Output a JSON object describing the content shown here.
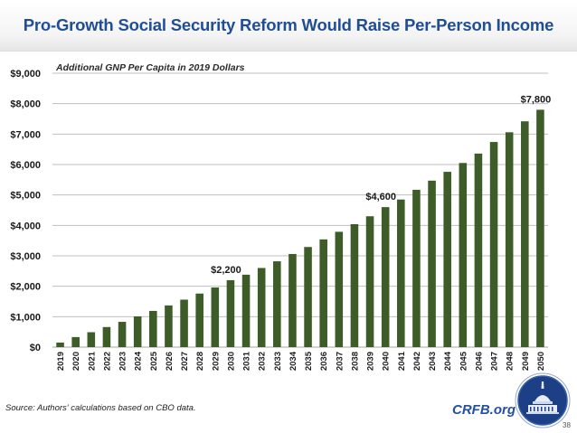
{
  "header": {
    "title": "Pro-Growth Social Security Reform Would Raise Per-Person Income"
  },
  "footer": {
    "source": "Source: Authors' calculations based on CBO data.",
    "brand": "CRFB.org",
    "page_number": "38",
    "logo_icon": "capitol-dome-logo-icon"
  },
  "colors": {
    "title": "#1f4e96",
    "bar": "#3d5c27",
    "brand": "#2450a0",
    "grid": "#bfbfbf"
  },
  "chart_data": {
    "type": "bar",
    "title": "Pro-Growth Social Security Reform Would Raise Per-Person Income",
    "subtitle": "Additional GNP Per Capita in 2019 Dollars",
    "xlabel": "",
    "ylabel": "",
    "ylim": [
      0,
      9000
    ],
    "yticks": [
      0,
      1000,
      2000,
      3000,
      4000,
      5000,
      6000,
      7000,
      8000,
      9000
    ],
    "ytick_labels": [
      "$0",
      "$1,000",
      "$2,000",
      "$3,000",
      "$4,000",
      "$5,000",
      "$6,000",
      "$7,000",
      "$8,000",
      "$9,000"
    ],
    "grid": true,
    "legend": "none",
    "categories": [
      "2019",
      "2020",
      "2021",
      "2022",
      "2023",
      "2024",
      "2025",
      "2026",
      "2027",
      "2028",
      "2029",
      "2030",
      "2031",
      "2032",
      "2033",
      "2034",
      "2035",
      "2036",
      "2037",
      "2038",
      "2039",
      "2040",
      "2041",
      "2042",
      "2043",
      "2044",
      "2045",
      "2046",
      "2047",
      "2048",
      "2049",
      "2050"
    ],
    "values": [
      150,
      330,
      490,
      660,
      830,
      1010,
      1190,
      1370,
      1560,
      1760,
      1960,
      2200,
      2380,
      2600,
      2820,
      3060,
      3290,
      3540,
      3790,
      4040,
      4300,
      4600,
      4850,
      5170,
      5470,
      5760,
      6050,
      6360,
      6740,
      7060,
      7420,
      7800
    ],
    "annotations": [
      {
        "category": "2030",
        "text": "$2,200"
      },
      {
        "category": "2040",
        "text": "$4,600"
      },
      {
        "category": "2050",
        "text": "$7,800"
      }
    ]
  }
}
